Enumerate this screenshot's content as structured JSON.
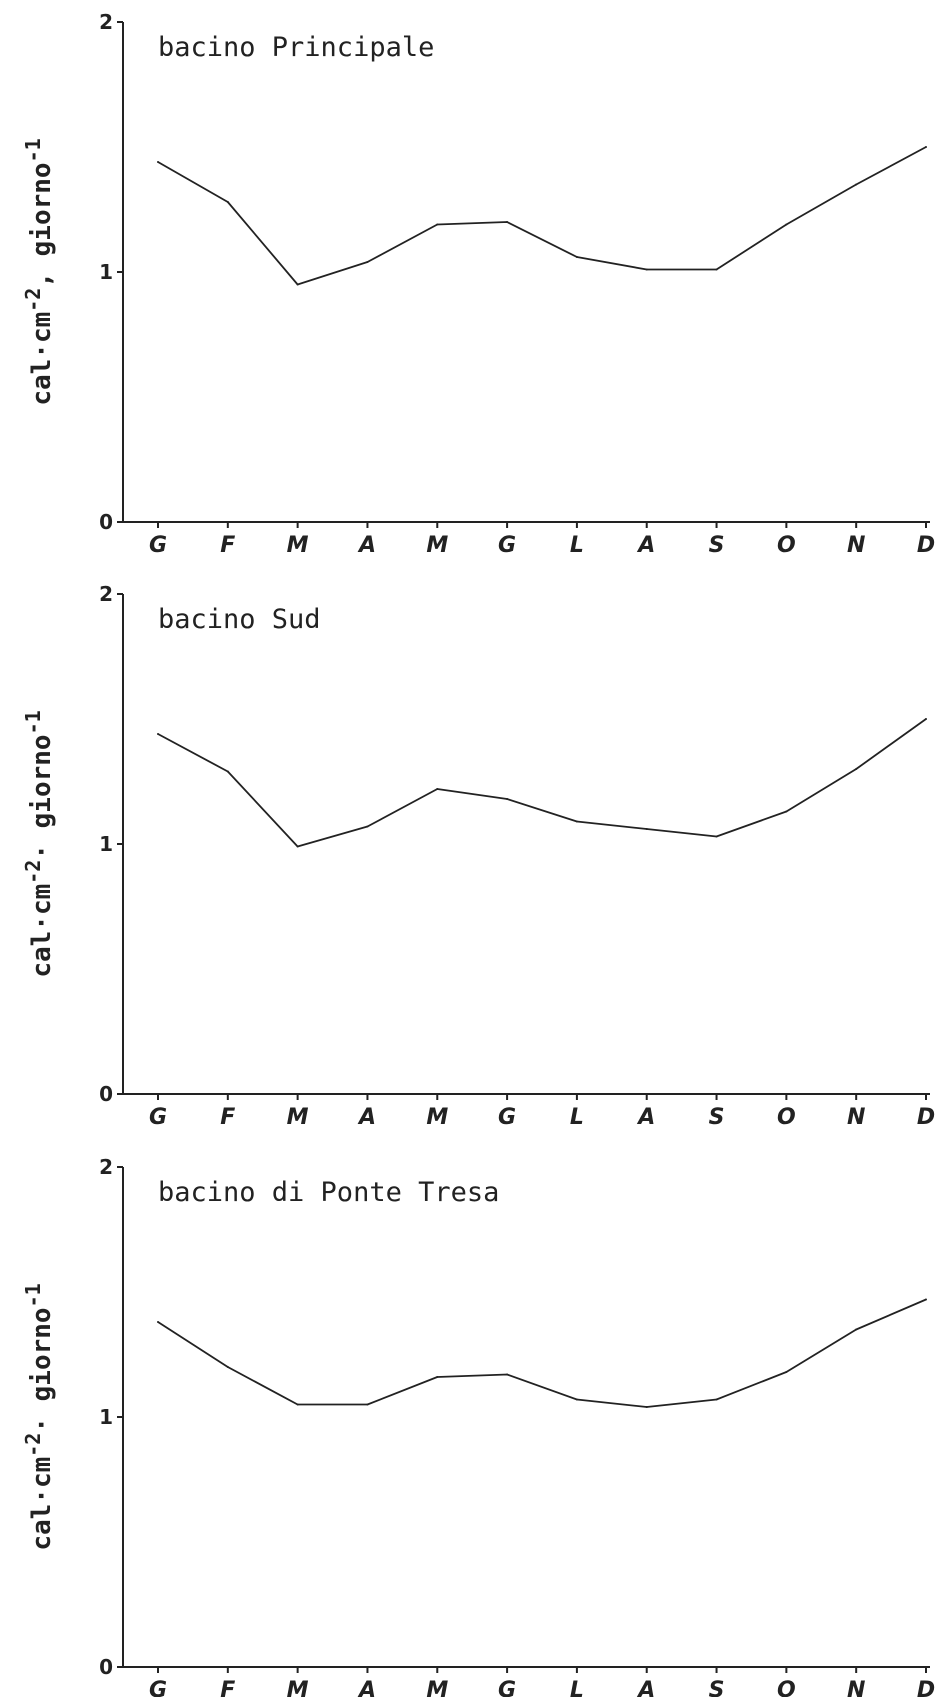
{
  "chart_data": [
    {
      "type": "line",
      "title": "bacino Principale",
      "ylabel": "cal·cm-2, giorno-1",
      "ylabel_parts": [
        "cal·cm",
        "-2",
        ", giorno",
        "-1"
      ],
      "ylim": [
        0,
        2
      ],
      "yticks": [
        "0",
        "1",
        "2"
      ],
      "categories": [
        "G",
        "F",
        "M",
        "A",
        "M",
        "G",
        "L",
        "A",
        "S",
        "O",
        "N",
        "D"
      ],
      "values": [
        1.44,
        1.28,
        0.95,
        1.04,
        1.19,
        1.2,
        1.06,
        1.01,
        1.01,
        1.19,
        1.35,
        1.5
      ]
    },
    {
      "type": "line",
      "title": "bacino Sud",
      "ylabel": "cal·cm-2· giorno-1",
      "ylabel_parts": [
        "cal·cm",
        "-2",
        "· giorno",
        "-1"
      ],
      "ylim": [
        0,
        2
      ],
      "yticks": [
        "0",
        "1",
        "2"
      ],
      "categories": [
        "G",
        "F",
        "M",
        "A",
        "M",
        "G",
        "L",
        "A",
        "S",
        "O",
        "N",
        "D"
      ],
      "values": [
        1.44,
        1.29,
        0.99,
        1.07,
        1.22,
        1.18,
        1.09,
        1.06,
        1.03,
        1.13,
        1.3,
        1.5
      ]
    },
    {
      "type": "line",
      "title": "bacino di Ponte Tresa",
      "ylabel": "cal·cm-2· giorno-1",
      "ylabel_parts": [
        "cal·cm",
        "-2",
        "· giorno",
        "-1"
      ],
      "ylim": [
        0,
        2
      ],
      "yticks": [
        "0",
        "1",
        "2"
      ],
      "categories": [
        "G",
        "F",
        "M",
        "A",
        "M",
        "G",
        "L",
        "A",
        "S",
        "O",
        "N",
        "D"
      ],
      "values": [
        1.38,
        1.2,
        1.05,
        1.05,
        1.16,
        1.17,
        1.07,
        1.04,
        1.07,
        1.18,
        1.35,
        1.47
      ]
    }
  ]
}
